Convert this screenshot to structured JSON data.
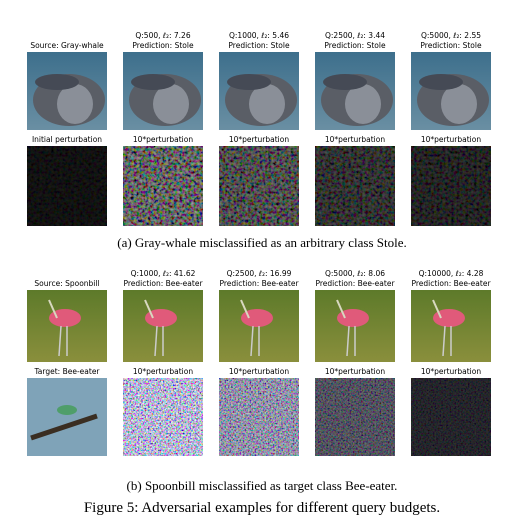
{
  "panel_a": {
    "source_label": "Source: Gray-whale",
    "columns": [
      {
        "query": "Q:500, ℓ₂: 7.26",
        "prediction": "Prediction: Stole"
      },
      {
        "query": "Q:1000, ℓ₂: 5.46",
        "prediction": "Prediction: Stole"
      },
      {
        "query": "Q:2500, ℓ₂: 3.44",
        "prediction": "Prediction: Stole"
      },
      {
        "query": "Q:5000, ℓ₂: 2.55",
        "prediction": "Prediction: Stole"
      }
    ],
    "perturbation_labels": [
      "Initial perturbation",
      "10*perturbation",
      "10*perturbation",
      "10*perturbation",
      "10*perturbation"
    ],
    "caption": "(a) Gray-whale misclassified as an arbitrary class Stole."
  },
  "panel_b": {
    "source_label": "Source: Spoonbill",
    "columns": [
      {
        "query": "Q:1000, ℓ₂: 41.62",
        "prediction": "Prediction: Bee-eater"
      },
      {
        "query": "Q:2500, ℓ₂: 16.99",
        "prediction": "Prediction: Bee-eater"
      },
      {
        "query": "Q:5000, ℓ₂: 8.06",
        "prediction": "Prediction: Bee-eater"
      },
      {
        "query": "Q:10000, ℓ₂: 4.28",
        "prediction": "Prediction: Bee-eater"
      }
    ],
    "perturbation_labels": [
      "Target: Bee-eater",
      "10*perturbation",
      "10*perturbation",
      "10*perturbation",
      "10*perturbation"
    ],
    "caption": "(b) Spoonbill misclassified as target class Bee-eater."
  },
  "figure_caption": "Figure 5: Adversarial examples for different query budgets."
}
